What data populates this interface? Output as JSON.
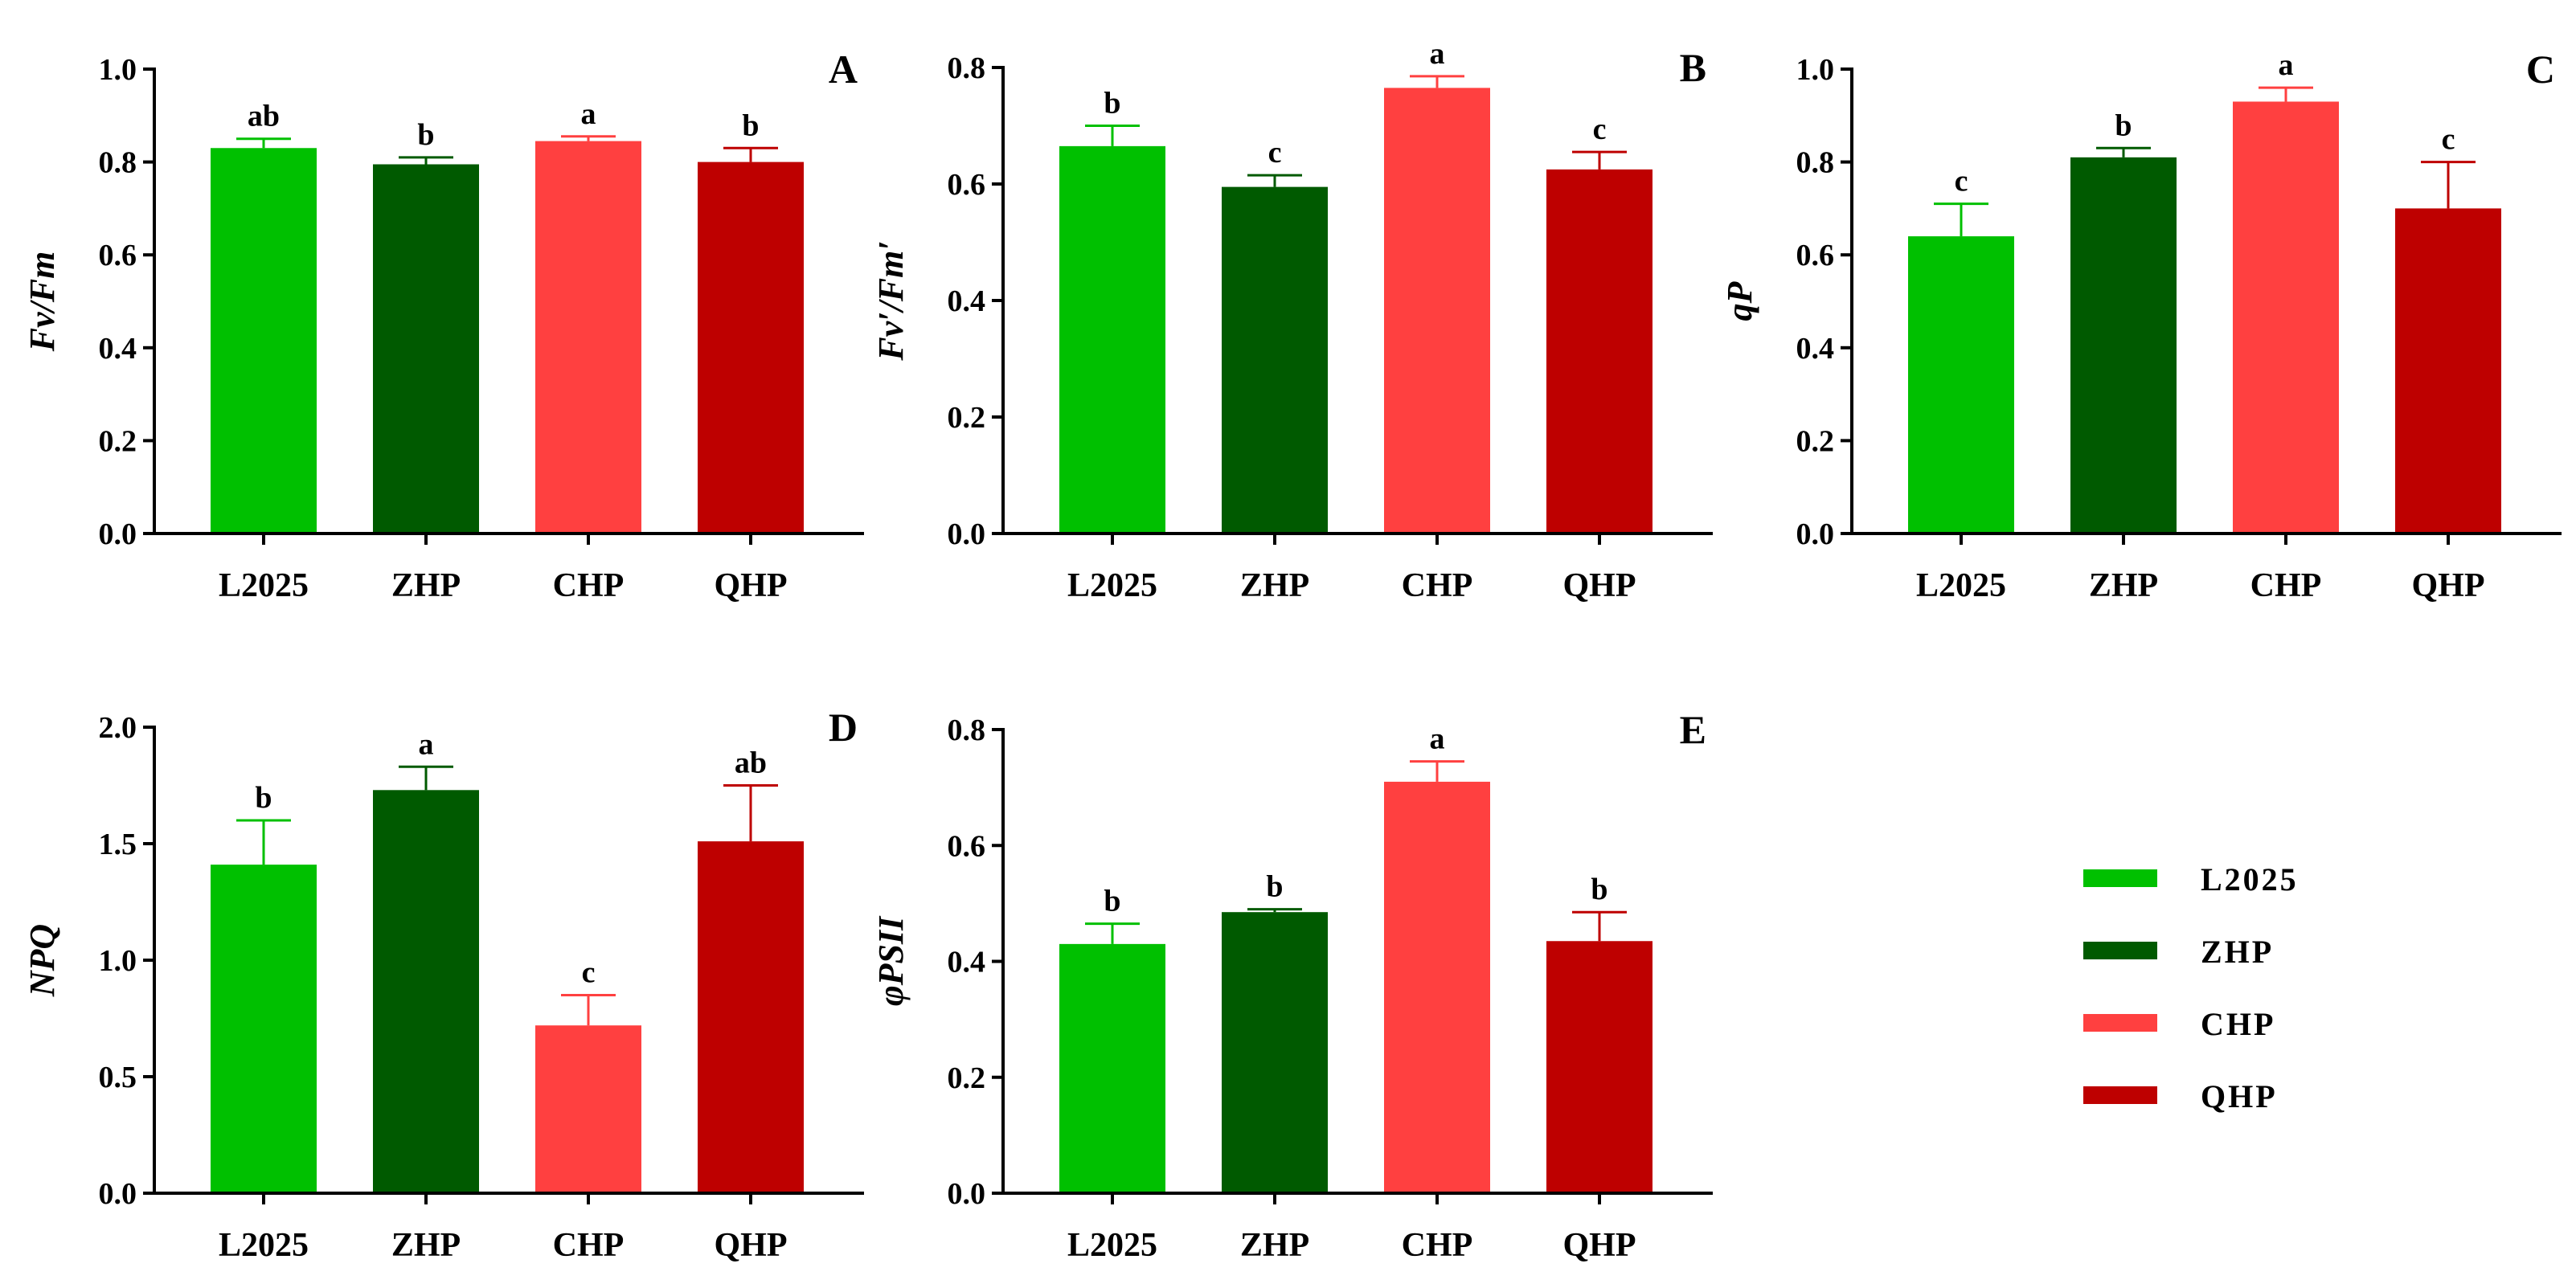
{
  "colors": {
    "L2025": "#00C000",
    "ZHP": "#005A00",
    "CHP": "#FF4040",
    "QHP": "#BE0000",
    "axis": "#000000"
  },
  "legend": {
    "items": [
      {
        "label": "L2025",
        "color": "#00C000"
      },
      {
        "label": "ZHP",
        "color": "#005A00"
      },
      {
        "label": "CHP",
        "color": "#FF4040"
      },
      {
        "label": "QHP",
        "color": "#BE0000"
      }
    ]
  },
  "chart_data": [
    {
      "type": "bar",
      "panel": "A",
      "ylabel": "Fv/Fm",
      "categories": [
        "L2025",
        "ZHP",
        "CHP",
        "QHP"
      ],
      "values": [
        0.83,
        0.795,
        0.845,
        0.8
      ],
      "errors": [
        0.02,
        0.015,
        0.01,
        0.03
      ],
      "significance": [
        "ab",
        "b",
        "a",
        "b"
      ],
      "ylim": [
        0,
        1.0
      ],
      "yticks": [
        "0.0",
        "0.2",
        "0.4",
        "0.6",
        "0.8",
        "1.0"
      ]
    },
    {
      "type": "bar",
      "panel": "B",
      "ylabel": "Fv′/Fm′",
      "categories": [
        "L2025",
        "ZHP",
        "CHP",
        "QHP"
      ],
      "values": [
        0.665,
        0.595,
        0.765,
        0.625
      ],
      "errors": [
        0.035,
        0.02,
        0.02,
        0.03
      ],
      "significance": [
        "b",
        "c",
        "a",
        "c"
      ],
      "ylim": [
        0,
        0.8
      ],
      "yticks": [
        "0.0",
        "0.2",
        "0.4",
        "0.6",
        "0.8"
      ]
    },
    {
      "type": "bar",
      "panel": "C",
      "ylabel": "qP",
      "categories": [
        "L2025",
        "ZHP",
        "CHP",
        "QHP"
      ],
      "values": [
        0.64,
        0.81,
        0.93,
        0.7
      ],
      "errors": [
        0.07,
        0.02,
        0.03,
        0.1
      ],
      "significance": [
        "c",
        "b",
        "a",
        "c"
      ],
      "ylim": [
        0,
        1.0
      ],
      "yticks": [
        "0.0",
        "0.2",
        "0.4",
        "0.6",
        "0.8",
        "1.0"
      ]
    },
    {
      "type": "bar",
      "panel": "D",
      "ylabel": "NPQ",
      "categories": [
        "L2025",
        "ZHP",
        "CHP",
        "QHP"
      ],
      "values": [
        1.41,
        1.73,
        0.72,
        1.51
      ],
      "errors": [
        0.19,
        0.1,
        0.13,
        0.24
      ],
      "significance": [
        "b",
        "a",
        "c",
        "ab"
      ],
      "ylim": [
        0,
        2.0
      ],
      "yticks": [
        "0.0",
        "0.5",
        "1.0",
        "1.5",
        "2.0"
      ]
    },
    {
      "type": "bar",
      "panel": "E",
      "ylabel": "φPSII",
      "categories": [
        "L2025",
        "ZHP",
        "CHP",
        "QHP"
      ],
      "values": [
        0.43,
        0.485,
        0.71,
        0.435
      ],
      "errors": [
        0.035,
        0.005,
        0.035,
        0.05
      ],
      "significance": [
        "b",
        "b",
        "a",
        "b"
      ],
      "ylim": [
        0,
        0.8
      ],
      "yticks": [
        "0.0",
        "0.2",
        "0.4",
        "0.6",
        "0.8"
      ]
    }
  ]
}
